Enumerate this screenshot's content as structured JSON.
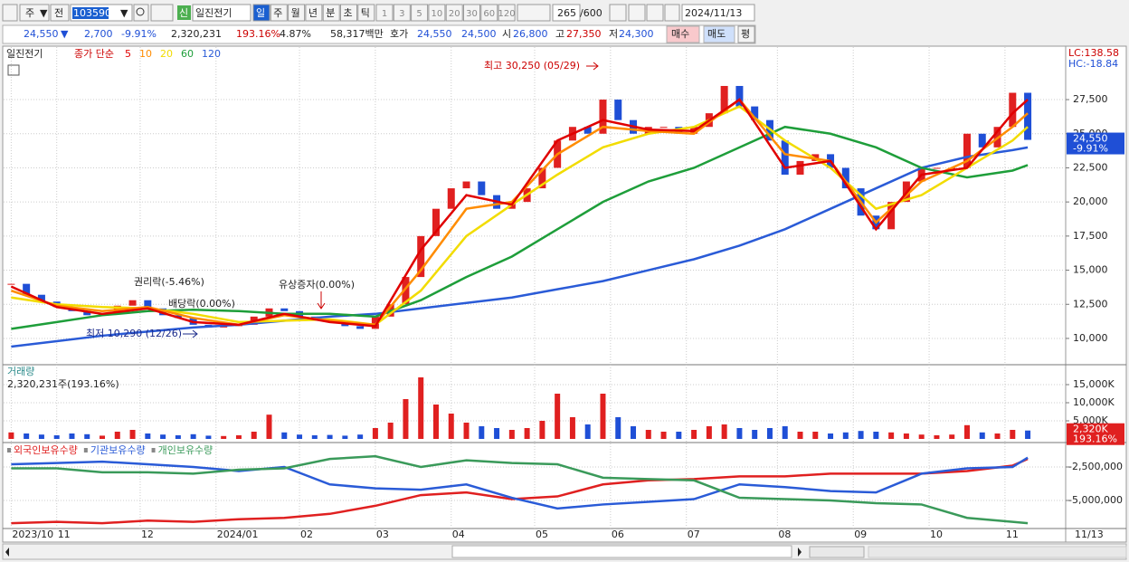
{
  "toolbar": {
    "market": "주",
    "scope": "전",
    "code": "103590",
    "badge": "신",
    "name": "일진전기",
    "periods": [
      "일",
      "주",
      "월",
      "년",
      "분",
      "초",
      "틱"
    ],
    "intervals": [
      "1",
      "3",
      "5",
      "10",
      "20",
      "30",
      "60",
      "120"
    ],
    "count": "265",
    "max_count": "/600",
    "date": "2024/11/13"
  },
  "quote_bar": {
    "price": "24,550",
    "direction": "▼",
    "change": "2,700",
    "change_rate": "-9.91%",
    "volume": "2,320,231",
    "volume_rate": "193.16%",
    "turnover_rate": "4.87%",
    "amount": "58,317백만",
    "ask_label": "호가",
    "ask": "24,550",
    "bid": "24,500",
    "open_label": "시",
    "open": "26,800",
    "high_label": "고",
    "high": "27,350",
    "low_label": "저",
    "low": "24,300",
    "buy": "매수",
    "sell": "매도",
    "avg": "평"
  },
  "x_axis": {
    "xlim": [
      -0.5,
      69.5
    ],
    "xticks": [
      {
        "value": 0,
        "label": "2023/10"
      },
      {
        "value": 3,
        "label": "11"
      },
      {
        "value": 8.5,
        "label": "12"
      },
      {
        "value": 13.5,
        "label": "2024/01"
      },
      {
        "value": 19,
        "label": "02"
      },
      {
        "value": 24,
        "label": "03"
      },
      {
        "value": 29,
        "label": "04"
      },
      {
        "value": 34.5,
        "label": "05"
      },
      {
        "value": 39.5,
        "label": "06"
      },
      {
        "value": 44.5,
        "label": "07"
      },
      {
        "value": 50.5,
        "label": "08"
      },
      {
        "value": 55.5,
        "label": "09"
      },
      {
        "value": 60.5,
        "label": "10"
      },
      {
        "value": 65.5,
        "label": "11"
      }
    ],
    "last_date": "11/13"
  },
  "price_panel": {
    "title": "일진전기",
    "ma_label": "종가 단순",
    "ylim": [
      8140,
      31350
    ],
    "yticks": [
      {
        "value": 27500,
        "label": "27,500"
      },
      {
        "value": 25000,
        "label": "25,000"
      },
      {
        "value": 22500,
        "label": "22,500"
      },
      {
        "value": 20000,
        "label": "20,000"
      },
      {
        "value": 17500,
        "label": "17,500"
      },
      {
        "value": 15000,
        "label": "15,000"
      },
      {
        "value": 12500,
        "label": "12,500"
      },
      {
        "value": 10000,
        "label": "10,000"
      }
    ],
    "up_color": "#e02020",
    "down_color": "#1f4fd6",
    "close": [
      14000,
      13200,
      12700,
      12300,
      12000,
      11700,
      11800,
      12400,
      12800,
      12200,
      11700,
      11500,
      11000,
      10800,
      10900,
      11000,
      11600,
      12200,
      12000,
      11600,
      11400,
      11200,
      10900,
      10700,
      11600,
      12500,
      14500,
      17500,
      19500,
      21000,
      21500,
      20500,
      19500,
      20000,
      21000,
      22500,
      24500,
      25500,
      25000,
      27500,
      26000,
      25000,
      25500,
      25500,
      25000,
      25500,
      26500,
      28500,
      27000,
      26000,
      24500,
      22000,
      23000,
      23500,
      22500,
      21000,
      19000,
      18000,
      20000,
      21500,
      22500,
      22500,
      22500,
      25000,
      24000,
      25500,
      28000,
      24550
    ],
    "moving_averages": [
      {
        "name": "5",
        "color": "#e00000",
        "x": [
          0,
          3,
          6,
          9,
          12,
          15,
          18,
          21,
          24,
          27,
          30,
          33,
          36,
          39,
          42,
          45,
          48,
          51,
          54,
          57,
          60,
          63,
          66,
          67
        ],
        "values": [
          13800,
          12300,
          11800,
          12200,
          11200,
          11000,
          11800,
          11200,
          10900,
          16500,
          20500,
          19800,
          24500,
          26000,
          25300,
          25200,
          27500,
          22500,
          23000,
          18000,
          22000,
          22500,
          26500,
          27500
        ]
      },
      {
        "name": "10",
        "color": "#ff8c00",
        "x": [
          0,
          3,
          6,
          9,
          12,
          15,
          18,
          21,
          24,
          27,
          30,
          33,
          36,
          39,
          42,
          45,
          48,
          51,
          54,
          57,
          60,
          63,
          66,
          67
        ],
        "values": [
          13500,
          12400,
          12000,
          12300,
          11500,
          11000,
          11700,
          11300,
          11000,
          15000,
          19500,
          20000,
          23500,
          25500,
          25200,
          25000,
          27500,
          23500,
          23000,
          18500,
          21500,
          23000,
          25500,
          26500
        ]
      },
      {
        "name": "20",
        "color": "#f2dc00",
        "x": [
          0,
          3,
          6,
          9,
          12,
          15,
          18,
          21,
          24,
          27,
          30,
          33,
          36,
          39,
          42,
          45,
          48,
          51,
          54,
          57,
          60,
          63,
          66,
          67
        ],
        "values": [
          13000,
          12500,
          12300,
          12200,
          11800,
          11200,
          11300,
          11400,
          11000,
          13500,
          17500,
          19800,
          22000,
          24000,
          25000,
          25500,
          27000,
          24500,
          22500,
          19500,
          20500,
          22500,
          24500,
          25500
        ]
      },
      {
        "name": "60",
        "color": "#1e9e3a",
        "x": [
          0,
          3,
          6,
          9,
          12,
          15,
          18,
          21,
          24,
          27,
          30,
          33,
          36,
          39,
          42,
          45,
          48,
          51,
          54,
          57,
          60,
          63,
          66,
          67
        ],
        "values": [
          10700,
          11200,
          11700,
          12000,
          12100,
          12000,
          11800,
          11800,
          11600,
          12800,
          14500,
          16000,
          18000,
          20000,
          21500,
          22500,
          24000,
          25500,
          25000,
          24000,
          22500,
          21800,
          22300,
          22700
        ]
      },
      {
        "name": "120",
        "color": "#2a5bd7",
        "x": [
          0,
          3,
          6,
          9,
          12,
          15,
          18,
          21,
          24,
          27,
          30,
          33,
          36,
          39,
          42,
          45,
          48,
          51,
          54,
          57,
          60,
          63,
          66,
          67
        ],
        "values": [
          9400,
          9800,
          10200,
          10500,
          10800,
          11000,
          11300,
          11600,
          11800,
          12200,
          12600,
          13000,
          13600,
          14200,
          15000,
          15800,
          16800,
          18000,
          19500,
          21000,
          22500,
          23300,
          23800,
          24000
        ]
      }
    ],
    "annotations": {
      "high": "최고 30,250 (05/29)",
      "low": "최저 10,290 (12/26)",
      "rights": "권리락(-5.46%)",
      "dividend": "배당락(0.00%)",
      "offering": "유상증자(0.00%)"
    },
    "lc": "LC:138.58",
    "hc": "HC:-18.84",
    "last_price": "24,550",
    "last_change": "-9.91%"
  },
  "volume_panel": {
    "title": "거래량",
    "summary": "2,320,231주(193.16%)",
    "ylim": [
      0,
      20000
    ],
    "yticks": [
      {
        "value": 15000,
        "label": "15,000K"
      },
      {
        "value": 10000,
        "label": "10,000K"
      },
      {
        "value": 5000,
        "label": "5,000K"
      }
    ],
    "values": [
      1800,
      1500,
      1200,
      1000,
      1500,
      1300,
      900,
      2000,
      2500,
      1500,
      1200,
      1000,
      1300,
      900,
      800,
      1000,
      2000,
      6700,
      1800,
      1200,
      1000,
      1100,
      900,
      1200,
      3000,
      4500,
      11000,
      17000,
      9500,
      7000,
      4500,
      3500,
      3000,
      2500,
      3000,
      5000,
      12500,
      6000,
      4000,
      12500,
      6000,
      3500,
      2500,
      2000,
      2000,
      2500,
      3500,
      4000,
      3000,
      2500,
      3000,
      3500,
      2000,
      2000,
      1500,
      1800,
      2200,
      2000,
      1800,
      1500,
      1200,
      1000,
      1200,
      3800,
      1800,
      1500,
      2500,
      2320
    ],
    "last_label": "2,320K",
    "last_rate": "193.16%"
  },
  "investor_panel": {
    "ylim": [
      -6960000,
      -810000
    ],
    "yticks": [
      {
        "value": -2500000,
        "label": "-2,500,000"
      },
      {
        "value": -5000000,
        "label": "-5,000,000"
      }
    ],
    "series": [
      {
        "name": "외국인보유수량",
        "color": "#e02020",
        "x": [
          0,
          3,
          6,
          9,
          12,
          15,
          18,
          21,
          24,
          27,
          30,
          33,
          36,
          39,
          42,
          45,
          48,
          51,
          54,
          57,
          60,
          63,
          66,
          67
        ],
        "values": [
          -6700000,
          -6600000,
          -6700000,
          -6500000,
          -6600000,
          -6400000,
          -6300000,
          -6000000,
          -5400000,
          -4600000,
          -4400000,
          -4900000,
          -4700000,
          -3800000,
          -3500000,
          -3400000,
          -3200000,
          -3200000,
          -3000000,
          -3000000,
          -3000000,
          -2800000,
          -2400000,
          -1900000
        ]
      },
      {
        "name": "기관보유수량",
        "color": "#2a5bd7",
        "x": [
          0,
          3,
          6,
          9,
          12,
          15,
          18,
          21,
          24,
          27,
          30,
          33,
          36,
          39,
          42,
          45,
          48,
          51,
          54,
          57,
          60,
          63,
          66,
          67
        ],
        "values": [
          -2300000,
          -2200000,
          -2100000,
          -2300000,
          -2500000,
          -2800000,
          -2500000,
          -3800000,
          -4100000,
          -4200000,
          -3800000,
          -4800000,
          -5600000,
          -5300000,
          -5100000,
          -4900000,
          -3800000,
          -4000000,
          -4300000,
          -4400000,
          -3000000,
          -2600000,
          -2500000,
          -1800000
        ]
      },
      {
        "name": "개인보유수량",
        "color": "#3a9a5a",
        "x": [
          0,
          3,
          6,
          9,
          12,
          15,
          18,
          21,
          24,
          27,
          30,
          33,
          36,
          39,
          42,
          45,
          48,
          51,
          54,
          57,
          60,
          63,
          66,
          67
        ],
        "values": [
          -2600000,
          -2600000,
          -2900000,
          -2900000,
          -3000000,
          -2700000,
          -2600000,
          -1900000,
          -1700000,
          -2500000,
          -2000000,
          -2200000,
          -2300000,
          -3300000,
          -3400000,
          -3500000,
          -4800000,
          -4900000,
          -5000000,
          -5200000,
          -5300000,
          -6300000,
          -6600000,
          -6700000
        ]
      }
    ]
  }
}
